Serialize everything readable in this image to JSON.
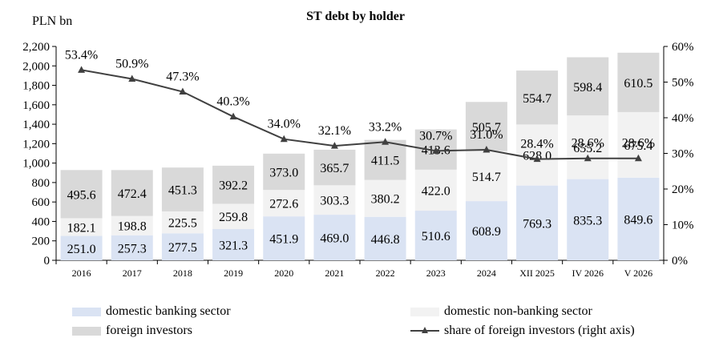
{
  "chart_data": {
    "type": "bar",
    "stacked": true,
    "title": "ST debt by holder",
    "ylabel_left": "PLN bn",
    "categories": [
      "2016",
      "2017",
      "2018",
      "2019",
      "2020",
      "2021",
      "2022",
      "2023",
      "2024",
      "XII 2025",
      "IV 2026",
      "V 2026"
    ],
    "series": [
      {
        "name": "domestic banking sector",
        "color": "#dae3f3",
        "values": [
          251.0,
          257.3,
          277.5,
          321.3,
          451.9,
          469.0,
          446.8,
          510.6,
          608.9,
          769.3,
          835.3,
          849.6
        ],
        "labels": [
          "251.0",
          "257.3",
          "277.5",
          "321.3",
          "451.9",
          "469.0",
          "446.8",
          "510.6",
          "608.9",
          "769.3",
          "835.3",
          "849.6"
        ]
      },
      {
        "name": "domestic non-banking sector",
        "color": "#f2f2f2",
        "values": [
          182.1,
          198.8,
          225.5,
          259.8,
          272.6,
          303.3,
          380.2,
          422.0,
          514.7,
          628.0,
          655.2,
          675.4
        ],
        "labels": [
          "182.1",
          "198.8",
          "225.5",
          "259.8",
          "272.6",
          "303.3",
          "380.2",
          "422.0",
          "514.7",
          "628.0",
          "655.2",
          "675.4"
        ]
      },
      {
        "name": "foreign investors",
        "color": "#d9d9d9",
        "values": [
          495.6,
          472.4,
          451.3,
          392.2,
          373.0,
          365.7,
          411.5,
          413.6,
          505.7,
          554.7,
          598.4,
          610.5
        ],
        "labels": [
          "495.6",
          "472.4",
          "451.3",
          "392.2",
          "373.0",
          "365.7",
          "411.5",
          "413.6",
          "505.7",
          "554.7",
          "598.4",
          "610.5"
        ]
      }
    ],
    "line_series": {
      "name": "share of foreign investors (right axis)",
      "color": "#404040",
      "values": [
        53.4,
        50.9,
        47.3,
        40.3,
        34.0,
        32.1,
        33.2,
        30.7,
        31.0,
        28.4,
        28.6,
        28.6
      ],
      "labels": [
        "53.4%",
        "50.9%",
        "47.3%",
        "40.3%",
        "34.0%",
        "32.1%",
        "33.2%",
        "30.7%",
        "31.0%",
        "28.4%",
        "28.6%",
        "28.6%"
      ]
    },
    "ylim_left": [
      0,
      2200
    ],
    "yticks_left": [
      "0",
      "200",
      "400",
      "600",
      "800",
      "1,000",
      "1,200",
      "1,400",
      "1,600",
      "1,800",
      "2,000",
      "2,200"
    ],
    "ylim_right": [
      0,
      60
    ],
    "yticks_right": [
      "0%",
      "10%",
      "20%",
      "30%",
      "40%",
      "50%",
      "60%"
    ],
    "grid": false,
    "legend_position": "bottom"
  }
}
